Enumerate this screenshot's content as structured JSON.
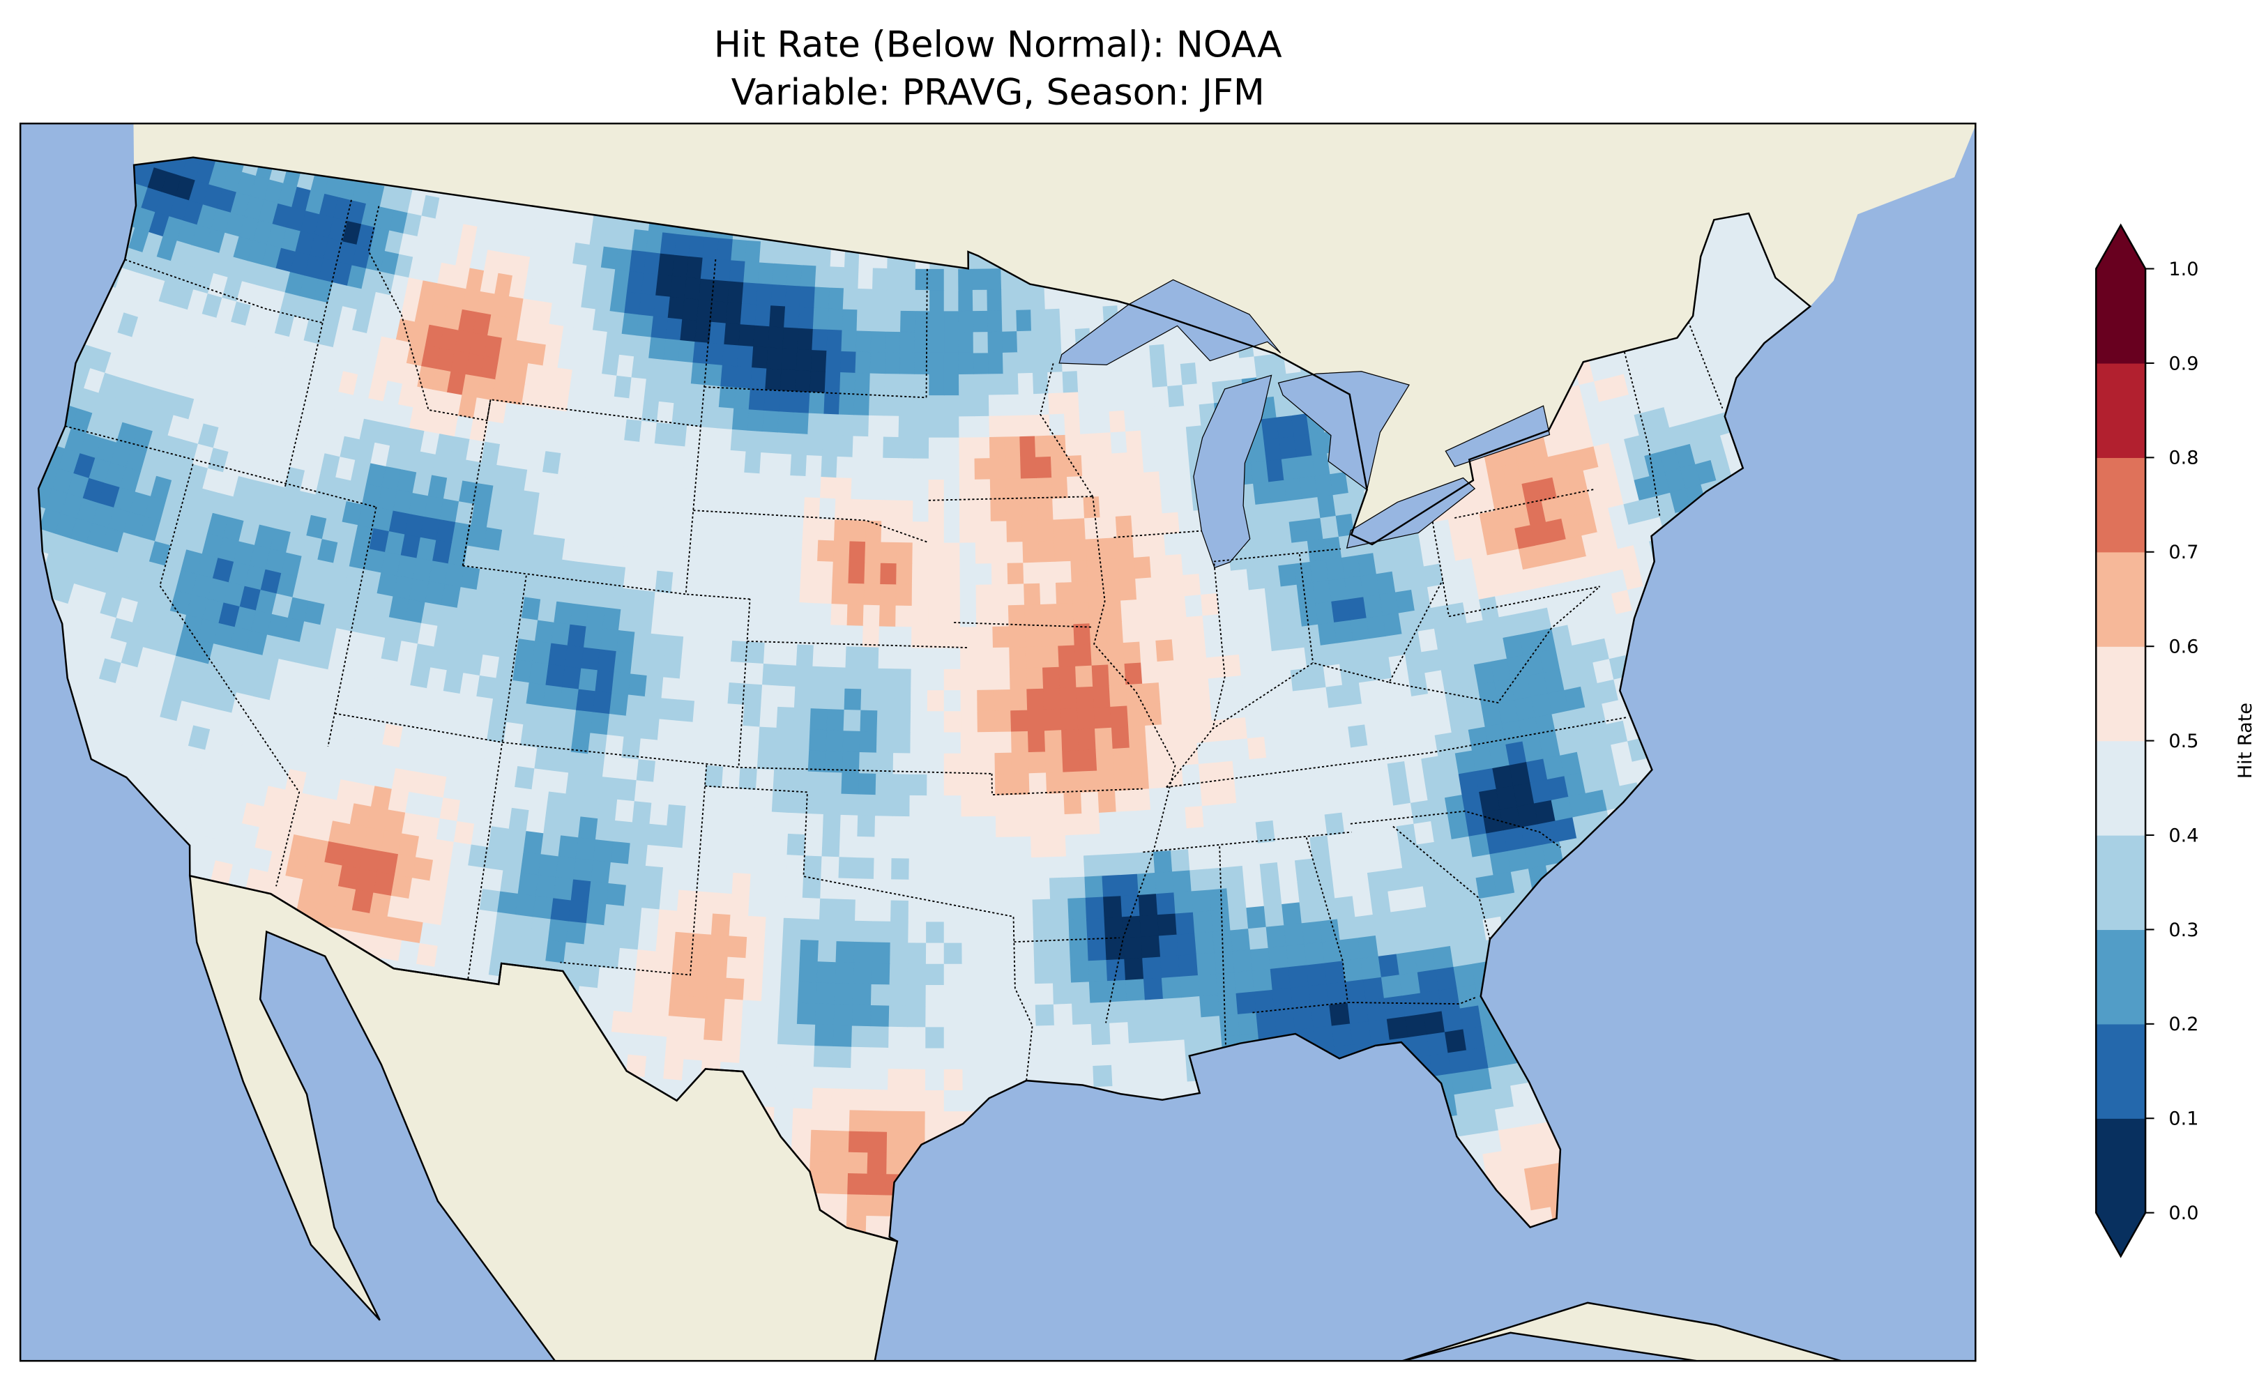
{
  "chart_data": {
    "type": "heatmap",
    "title_line1": "Hit Rate (Below Normal): NOAA",
    "title_line2": "Variable: PRAVG, Season: JFM",
    "colorbar": {
      "label": "Hit Rate",
      "ticks": [
        "0.0",
        "0.1",
        "0.2",
        "0.3",
        "0.4",
        "0.5",
        "0.6",
        "0.7",
        "0.8",
        "0.9",
        "1.0"
      ],
      "levels": [
        0,
        0.1,
        0.2,
        0.3,
        0.4,
        0.5,
        0.6,
        0.7,
        0.8,
        0.9,
        1.0
      ],
      "colors": [
        "#08305f",
        "#2468ac",
        "#529dc7",
        "#a8d0e4",
        "#e0ebf2",
        "#fae6dd",
        "#f6b899",
        "#df725a",
        "#b2202f",
        "#68001f"
      ],
      "extend": "both"
    },
    "map": {
      "region": "Contiguous United States",
      "land_color": "#efeddb",
      "ocean_color": "#97b6e1",
      "background_value": 0.45,
      "features": [
        {
          "lon": -123.2,
          "lat": 48.3,
          "value": 0.08,
          "spread_deg": 1.2
        },
        {
          "lon": -117.3,
          "lat": 48.0,
          "value": 0.1,
          "spread_deg": 1.2
        },
        {
          "lon": -105.1,
          "lat": 48.3,
          "value": 0.05,
          "spread_deg": 1.3
        },
        {
          "lon": -101.2,
          "lat": 46.7,
          "value": 0.05,
          "spread_deg": 1.2
        },
        {
          "lon": -112.2,
          "lat": 46.2,
          "value": 0.75,
          "spread_deg": 1.3
        },
        {
          "lon": -98.3,
          "lat": 41.9,
          "value": 0.72,
          "spread_deg": 1.0
        },
        {
          "lon": -93.6,
          "lat": 44.4,
          "value": 0.7,
          "spread_deg": 0.8
        },
        {
          "lon": -92.1,
          "lat": 38.3,
          "value": 0.76,
          "spread_deg": 1.8
        },
        {
          "lon": -91.6,
          "lat": 42.5,
          "value": 0.62,
          "spread_deg": 1.5
        },
        {
          "lon": -76.9,
          "lat": 41.8,
          "value": 0.72,
          "spread_deg": 1.5
        },
        {
          "lon": -79.5,
          "lat": 34.9,
          "value": 0.05,
          "spread_deg": 1.2
        },
        {
          "lon": -90.7,
          "lat": 33.2,
          "value": 0.05,
          "spread_deg": 1.2
        },
        {
          "lon": -86.1,
          "lat": 30.8,
          "value": 0.15,
          "spread_deg": 1.8
        },
        {
          "lon": -82.3,
          "lat": 30.0,
          "value": 0.15,
          "spread_deg": 1.3
        },
        {
          "lon": -97.9,
          "lat": 27.8,
          "value": 0.75,
          "spread_deg": 1.2
        },
        {
          "lon": -80.5,
          "lat": 25.9,
          "value": 0.68,
          "spread_deg": 1.0
        },
        {
          "lon": -102.8,
          "lat": 32.1,
          "value": 0.72,
          "spread_deg": 1.4
        },
        {
          "lon": -112.4,
          "lat": 33.4,
          "value": 0.72,
          "spread_deg": 1.4
        },
        {
          "lon": -106.2,
          "lat": 33.5,
          "value": 0.2,
          "spread_deg": 1.5
        },
        {
          "lon": -99.2,
          "lat": 31.9,
          "value": 0.2,
          "spread_deg": 1.3
        },
        {
          "lon": -107.0,
          "lat": 39.0,
          "value": 0.15,
          "spread_deg": 1.2
        },
        {
          "lon": -117.8,
          "lat": 39.2,
          "value": 0.2,
          "spread_deg": 1.4
        },
        {
          "lon": -112.5,
          "lat": 41.5,
          "value": 0.2,
          "spread_deg": 1.5
        },
        {
          "lon": -123.1,
          "lat": 41.0,
          "value": 0.2,
          "spread_deg": 1.3
        },
        {
          "lon": -85.1,
          "lat": 44.2,
          "value": 0.2,
          "spread_deg": 1.3
        },
        {
          "lon": -83.4,
          "lat": 40.6,
          "value": 0.2,
          "spread_deg": 1.2
        },
        {
          "lon": -78.5,
          "lat": 38.2,
          "value": 0.25,
          "spread_deg": 1.2
        },
        {
          "lon": -73.1,
          "lat": 41.8,
          "value": 0.22,
          "spread_deg": 1.0
        },
        {
          "lon": -99.0,
          "lat": 37.8,
          "value": 0.25,
          "spread_deg": 1.3
        },
        {
          "lon": -95.5,
          "lat": 47.4,
          "value": 0.25,
          "spread_deg": 1.5
        }
      ]
    }
  }
}
